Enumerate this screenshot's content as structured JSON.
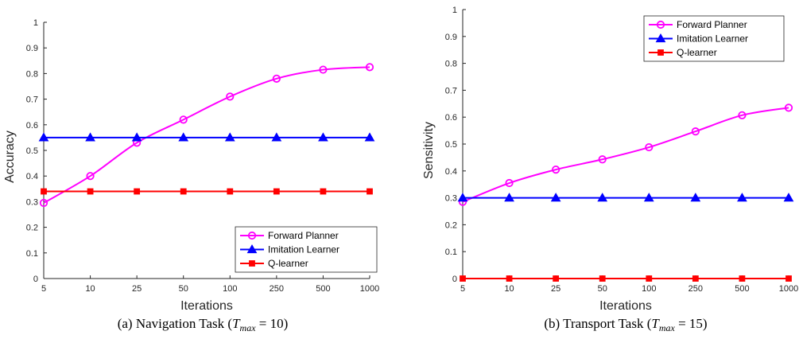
{
  "chart_data": [
    {
      "type": "line",
      "caption": {
        "prefix": "(a) Navigation Task (",
        "var": "T",
        "sub": "max",
        "suffix": " = 10)"
      },
      "xlabel": "Iterations",
      "ylabel": "Accuracy",
      "categories": [
        "5",
        "10",
        "25",
        "50",
        "100",
        "250",
        "500",
        "1000"
      ],
      "ylim": [
        0,
        1
      ],
      "yticks": [
        "0",
        "0.1",
        "0.2",
        "0.3",
        "0.4",
        "0.5",
        "0.6",
        "0.7",
        "0.8",
        "0.9",
        "1"
      ],
      "legend_position": "bottom-right",
      "series": [
        {
          "name": "Forward Planner",
          "color": "#ff00ff",
          "marker": "circle",
          "values": [
            0.295,
            0.4,
            0.53,
            0.62,
            0.71,
            0.78,
            0.815,
            0.825
          ]
        },
        {
          "name": "Imitation Learner",
          "color": "#0000ff",
          "marker": "triangle",
          "values": [
            0.55,
            0.55,
            0.55,
            0.55,
            0.55,
            0.55,
            0.55,
            0.55
          ]
        },
        {
          "name": "Q-learner",
          "color": "#ff0000",
          "marker": "square",
          "values": [
            0.34,
            0.34,
            0.34,
            0.34,
            0.34,
            0.34,
            0.34,
            0.34
          ]
        }
      ]
    },
    {
      "type": "line",
      "caption": {
        "prefix": "(b) Transport Task (",
        "var": "T",
        "sub": "max",
        "suffix": " = 15)"
      },
      "xlabel": "Iterations",
      "ylabel": "Sensitivity",
      "categories": [
        "5",
        "10",
        "25",
        "50",
        "100",
        "250",
        "500",
        "1000"
      ],
      "ylim": [
        0,
        1
      ],
      "yticks": [
        "0",
        "0.1",
        "0.2",
        "0.3",
        "0.4",
        "0.5",
        "0.6",
        "0.7",
        "0.8",
        "0.9",
        "1"
      ],
      "legend_position": "top-right",
      "series": [
        {
          "name": "Forward Planner",
          "color": "#ff00ff",
          "marker": "circle",
          "values": [
            0.285,
            0.355,
            0.405,
            0.443,
            0.488,
            0.547,
            0.607,
            0.635
          ]
        },
        {
          "name": "Imitation Learner",
          "color": "#0000ff",
          "marker": "triangle",
          "values": [
            0.3,
            0.3,
            0.3,
            0.3,
            0.3,
            0.3,
            0.3,
            0.3
          ]
        },
        {
          "name": "Q-learner",
          "color": "#ff0000",
          "marker": "square",
          "values": [
            0.0,
            0.0,
            0.0,
            0.0,
            0.0,
            0.0,
            0.0,
            0.0
          ]
        }
      ]
    }
  ]
}
